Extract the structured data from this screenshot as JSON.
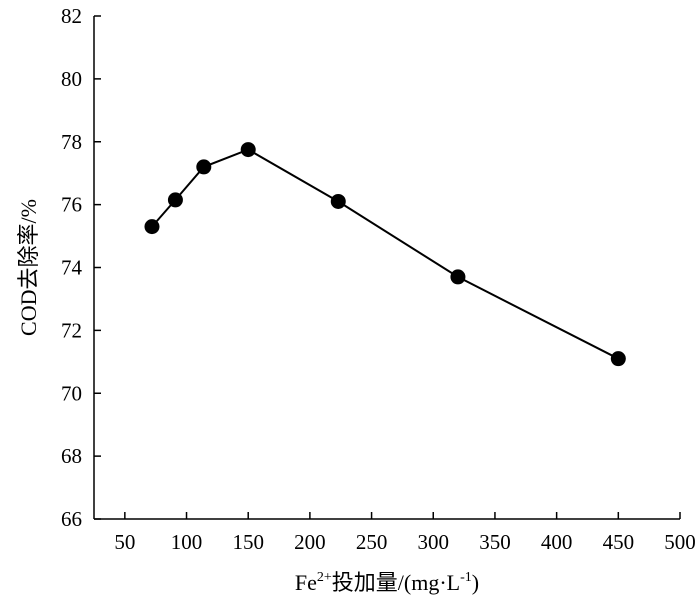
{
  "chart_data": {
    "type": "line",
    "xlabel": {
      "prefix": "Fe",
      "superscript": "2+",
      "middle": "投加量/(mg·L",
      "superscript2": "-1",
      "suffix": ")"
    },
    "ylabel": "COD去除率/%",
    "xlim": [
      25,
      500
    ],
    "ylim": [
      66,
      82
    ],
    "x_ticks": [
      50,
      100,
      150,
      200,
      250,
      300,
      350,
      400,
      450,
      500
    ],
    "y_ticks": [
      66,
      68,
      70,
      72,
      74,
      76,
      78,
      80,
      82
    ],
    "grid": false,
    "marker": "filled-circle",
    "series": [
      {
        "x": [
          72,
          91,
          114,
          150,
          223,
          320,
          450
        ],
        "y": [
          75.3,
          76.15,
          77.2,
          77.75,
          76.1,
          73.7,
          71.1
        ]
      }
    ]
  }
}
